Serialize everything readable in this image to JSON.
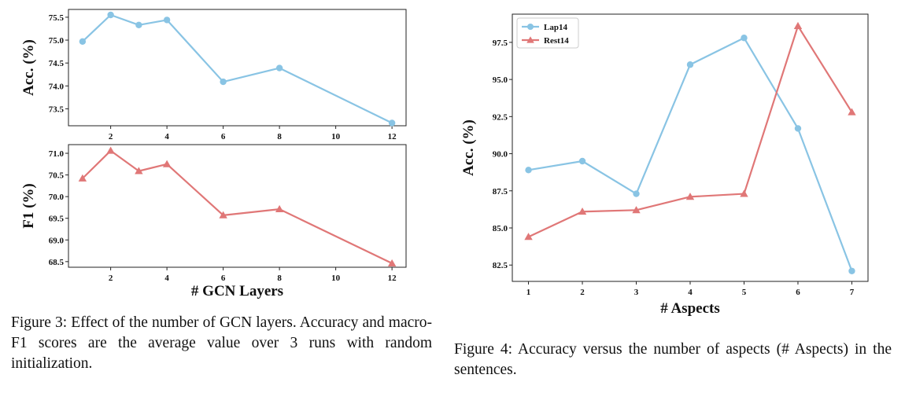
{
  "figures": [
    {
      "id": "figure-3",
      "caption": "Figure 3:  Effect of the number of GCN layers. Accuracy and macro-F1 scores are the average value over 3 runs with random initialization."
    },
    {
      "id": "figure-4",
      "caption": "Figure 4:  Accuracy versus the number of aspects (# Aspects) in the sentences."
    }
  ],
  "colors": {
    "blue": "#89c4e4",
    "red": "#e07777"
  },
  "chart_data": [
    {
      "type": "line",
      "x": [
        1,
        2,
        3,
        4,
        6,
        8,
        12
      ],
      "xticks": [
        "2",
        "4",
        "6",
        "8",
        "10",
        "12"
      ],
      "xlabel": "",
      "ylabel": "Acc. (%)",
      "yticks": [
        "73.5",
        "74.0",
        "74.5",
        "75.0",
        "75.5"
      ],
      "xlim": [
        0.5,
        12.5
      ],
      "ylim": [
        73.13,
        75.67
      ],
      "series": [
        {
          "values": [
            74.97,
            75.55,
            75.33,
            75.44,
            74.09,
            74.39,
            73.19
          ],
          "color": "#89c4e4",
          "marker": "circle"
        }
      ],
      "legend": false,
      "grid": false
    },
    {
      "type": "line",
      "x": [
        1,
        2,
        3,
        4,
        6,
        8,
        12
      ],
      "xticks": [
        "2",
        "4",
        "6",
        "8",
        "10",
        "12"
      ],
      "xlabel": "# GCN Layers",
      "ylabel": "F1 (%)",
      "yticks": [
        "68.5",
        "69.0",
        "69.5",
        "70.0",
        "70.5",
        "71.0"
      ],
      "xlim": [
        0.5,
        12.5
      ],
      "ylim": [
        68.37,
        71.2
      ],
      "series": [
        {
          "values": [
            70.42,
            71.06,
            70.59,
            70.75,
            69.57,
            69.71,
            68.46
          ],
          "color": "#e07777",
          "marker": "triangle"
        }
      ],
      "legend": false,
      "grid": false
    },
    {
      "type": "line",
      "x": [
        1,
        2,
        3,
        4,
        5,
        6,
        7
      ],
      "xticks": [
        "1",
        "2",
        "3",
        "4",
        "5",
        "6",
        "7"
      ],
      "xlabel": "# Aspects",
      "ylabel": "Acc. (%)",
      "yticks": [
        "82.5",
        "85.0",
        "87.5",
        "90.0",
        "92.5",
        "95.0",
        "97.5"
      ],
      "xlim": [
        0.7,
        7.3
      ],
      "ylim": [
        81.4,
        99.4
      ],
      "series": [
        {
          "name": "Lap14",
          "values": [
            88.9,
            89.5,
            87.3,
            96.0,
            97.8,
            91.7,
            82.1
          ],
          "color": "#89c4e4",
          "marker": "circle"
        },
        {
          "name": "Rest14",
          "values": [
            84.4,
            86.1,
            86.2,
            87.1,
            87.3,
            98.6,
            92.8
          ],
          "color": "#e07777",
          "marker": "triangle"
        }
      ],
      "legend": "top-left",
      "grid": false
    }
  ]
}
